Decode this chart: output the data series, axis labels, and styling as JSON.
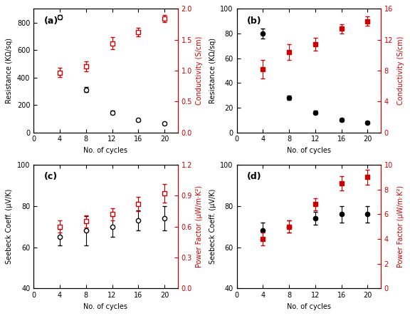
{
  "cycles": [
    4,
    8,
    12,
    16,
    20
  ],
  "a_resistance": [
    840,
    310,
    145,
    90,
    65
  ],
  "a_resistance_err": [
    15,
    18,
    12,
    8,
    5
  ],
  "a_conductivity": [
    0.97,
    1.07,
    1.44,
    1.62,
    1.84
  ],
  "a_conductivity_err": [
    0.07,
    0.08,
    0.1,
    0.07,
    0.06
  ],
  "a_res_ylim": [
    0,
    900
  ],
  "a_cond_ylim": [
    0,
    2.0
  ],
  "a_res_yticks": [
    0,
    200,
    400,
    600,
    800
  ],
  "a_cond_yticks": [
    0,
    0.5,
    1.0,
    1.5,
    2.0
  ],
  "b_resistance": [
    80,
    28,
    16,
    10,
    8
  ],
  "b_resistance_err": [
    4,
    2,
    1.5,
    1,
    0.8
  ],
  "b_conductivity": [
    8.2,
    10.4,
    11.4,
    13.4,
    14.4
  ],
  "b_conductivity_err": [
    1.2,
    1.0,
    0.8,
    0.6,
    0.6
  ],
  "b_res_ylim": [
    0,
    100
  ],
  "b_cond_ylim": [
    0,
    16
  ],
  "b_res_yticks": [
    0,
    20,
    40,
    60,
    80,
    100
  ],
  "b_cond_yticks": [
    0,
    4,
    8,
    12,
    16
  ],
  "c_seebeck": [
    65,
    68,
    70,
    73,
    74
  ],
  "c_seebeck_err": [
    4,
    7,
    5,
    5,
    6
  ],
  "c_powerfactor": [
    0.6,
    0.65,
    0.72,
    0.82,
    0.92
  ],
  "c_powerfactor_err": [
    0.06,
    0.06,
    0.06,
    0.07,
    0.09
  ],
  "c_seebeck_ylim": [
    40,
    100
  ],
  "c_pf_ylim": [
    0,
    1.2
  ],
  "c_seebeck_yticks": [
    40,
    60,
    80,
    100
  ],
  "c_pf_yticks": [
    0,
    0.3,
    0.6,
    0.9,
    1.2
  ],
  "d_seebeck": [
    68,
    70,
    74,
    76,
    76
  ],
  "d_seebeck_err": [
    4,
    3,
    3,
    4,
    4
  ],
  "d_powerfactor": [
    4.0,
    5.0,
    6.8,
    8.5,
    9.0
  ],
  "d_powerfactor_err": [
    0.5,
    0.5,
    0.5,
    0.6,
    0.6
  ],
  "d_seebeck_ylim": [
    40,
    100
  ],
  "d_pf_ylim": [
    0,
    10
  ],
  "d_seebeck_yticks": [
    40,
    60,
    80,
    100
  ],
  "d_pf_yticks": [
    0,
    2,
    4,
    6,
    8,
    10
  ],
  "xlabel": "No. of cycles",
  "xlim": [
    0,
    22
  ],
  "xticks": [
    0,
    4,
    8,
    12,
    16,
    20
  ],
  "black_color": "#000000",
  "red_color": "#cc0000",
  "background": "#ffffff",
  "label_a": "(a)",
  "label_b": "(b)",
  "label_c": "(c)",
  "label_d": "(d)",
  "ylabel_resistance": "Resistance (KΩ/sq)",
  "ylabel_conductivity": "Conductivity (S/cm)",
  "ylabel_seebeck": "Seebeck Coeff. (μV/K)",
  "ylabel_powerfactor_c": "Power Factor (μW/m·K²)",
  "ylabel_powerfactor_d": "Power Factor (μW/m·K²)"
}
